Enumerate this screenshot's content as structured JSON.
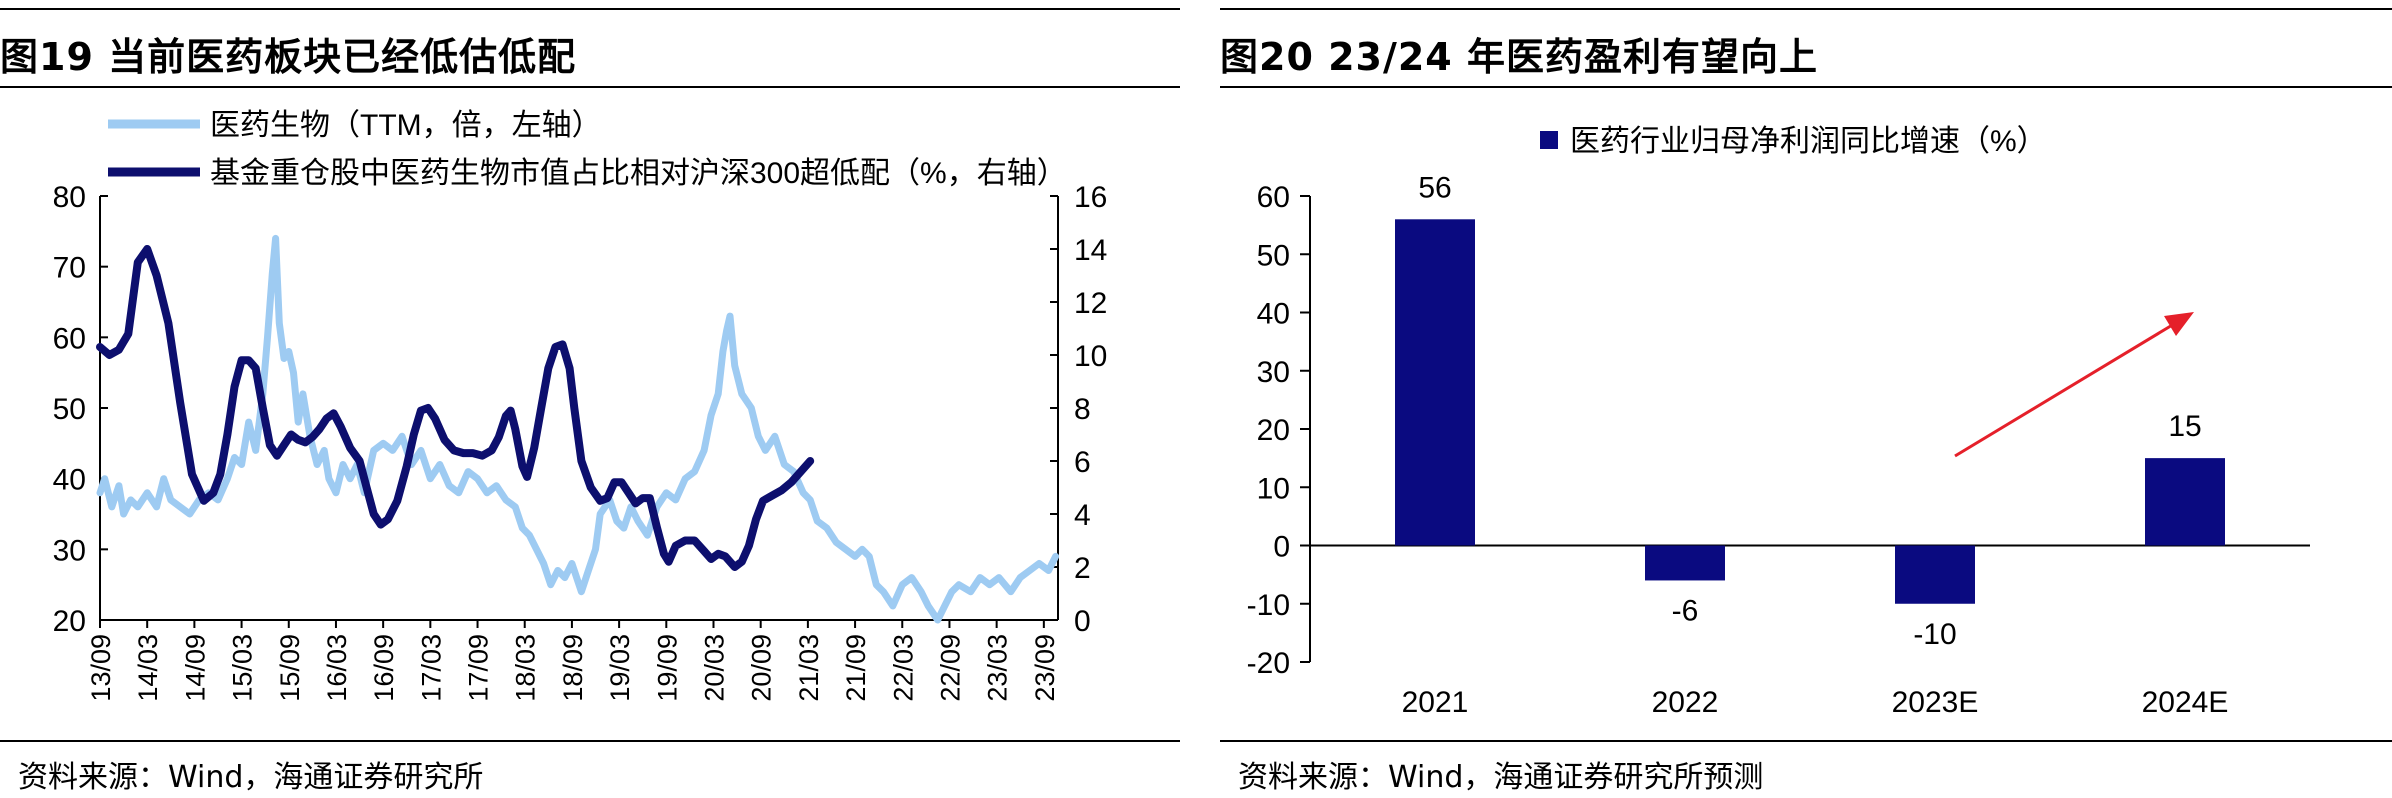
{
  "colors": {
    "light_series": "#9ecbf2",
    "dark_series": "#0d0f6e",
    "bar": "#0a0a80",
    "arrow": "#e5202a",
    "axis": "#000000"
  },
  "left_panel": {
    "title": "图19 当前医药板块已经低估低配",
    "source": "资料来源：Wind，海通证券研究所"
  },
  "right_panel": {
    "title": "图20 23/24 年医药盈利有望向上",
    "source": "资料来源：Wind，海通证券研究所预测"
  },
  "chart_data": [
    {
      "type": "line",
      "title": "当前医药板块已经低估低配",
      "x_tick_labels": [
        "13/09",
        "14/03",
        "14/09",
        "15/03",
        "15/09",
        "16/03",
        "16/09",
        "17/03",
        "17/09",
        "18/03",
        "18/09",
        "19/03",
        "19/09",
        "20/03",
        "20/09",
        "21/03",
        "21/09",
        "22/03",
        "22/09",
        "23/03",
        "23/09"
      ],
      "x_range": [
        0,
        20.3
      ],
      "y_left_range": [
        20,
        80
      ],
      "y_left_ticks": [
        "80",
        "70",
        "60",
        "50",
        "40",
        "30",
        "20"
      ],
      "y_right_range": [
        0,
        16
      ],
      "y_right_ticks": [
        "16",
        "14",
        "12",
        "10",
        "8",
        "6",
        "4",
        "2",
        "0"
      ],
      "series": [
        {
          "name": "医药生物（TTM，倍，左轴）",
          "axis": "left",
          "points": [
            [
              0,
              38
            ],
            [
              0.1,
              40
            ],
            [
              0.25,
              36
            ],
            [
              0.4,
              39
            ],
            [
              0.5,
              35
            ],
            [
              0.65,
              37
            ],
            [
              0.8,
              36
            ],
            [
              1,
              38
            ],
            [
              1.2,
              36
            ],
            [
              1.35,
              40
            ],
            [
              1.5,
              37
            ],
            [
              1.7,
              36
            ],
            [
              1.9,
              35
            ],
            [
              2.1,
              37
            ],
            [
              2.3,
              38
            ],
            [
              2.5,
              37
            ],
            [
              2.7,
              40
            ],
            [
              2.85,
              43
            ],
            [
              3,
              42
            ],
            [
              3.15,
              48
            ],
            [
              3.3,
              44
            ],
            [
              3.45,
              52
            ],
            [
              3.55,
              60
            ],
            [
              3.65,
              69
            ],
            [
              3.72,
              74
            ],
            [
              3.8,
              62
            ],
            [
              3.9,
              57
            ],
            [
              4,
              58
            ],
            [
              4.1,
              55
            ],
            [
              4.2,
              48
            ],
            [
              4.3,
              52
            ],
            [
              4.45,
              46
            ],
            [
              4.6,
              42
            ],
            [
              4.75,
              44
            ],
            [
              4.85,
              40
            ],
            [
              5,
              38
            ],
            [
              5.15,
              42
            ],
            [
              5.3,
              40
            ],
            [
              5.45,
              42
            ],
            [
              5.6,
              38
            ],
            [
              5.8,
              44
            ],
            [
              6,
              45
            ],
            [
              6.2,
              44
            ],
            [
              6.4,
              46
            ],
            [
              6.6,
              42
            ],
            [
              6.8,
              44
            ],
            [
              7,
              40
            ],
            [
              7.2,
              42
            ],
            [
              7.4,
              39
            ],
            [
              7.6,
              38
            ],
            [
              7.8,
              41
            ],
            [
              8,
              40
            ],
            [
              8.2,
              38
            ],
            [
              8.4,
              39
            ],
            [
              8.6,
              37
            ],
            [
              8.8,
              36
            ],
            [
              8.95,
              33
            ],
            [
              9.1,
              32
            ],
            [
              9.25,
              30
            ],
            [
              9.4,
              28
            ],
            [
              9.55,
              25
            ],
            [
              9.7,
              27
            ],
            [
              9.85,
              26
            ],
            [
              10,
              28
            ],
            [
              10.2,
              24
            ],
            [
              10.35,
              27
            ],
            [
              10.5,
              30
            ],
            [
              10.6,
              35
            ],
            [
              10.8,
              37
            ],
            [
              10.95,
              34
            ],
            [
              11.1,
              33
            ],
            [
              11.25,
              36
            ],
            [
              11.4,
              34
            ],
            [
              11.6,
              32
            ],
            [
              11.8,
              36
            ],
            [
              12,
              38
            ],
            [
              12.2,
              37
            ],
            [
              12.4,
              40
            ],
            [
              12.6,
              41
            ],
            [
              12.8,
              44
            ],
            [
              12.95,
              49
            ],
            [
              13.1,
              52
            ],
            [
              13.2,
              58
            ],
            [
              13.28,
              61
            ],
            [
              13.35,
              63
            ],
            [
              13.45,
              56
            ],
            [
              13.6,
              52
            ],
            [
              13.8,
              50
            ],
            [
              13.95,
              46
            ],
            [
              14.1,
              44
            ],
            [
              14.3,
              46
            ],
            [
              14.5,
              42
            ],
            [
              14.7,
              41
            ],
            [
              14.9,
              38
            ],
            [
              15.05,
              37
            ],
            [
              15.2,
              34
            ],
            [
              15.4,
              33
            ],
            [
              15.6,
              31
            ],
            [
              15.8,
              30
            ],
            [
              16,
              29
            ],
            [
              16.15,
              30
            ],
            [
              16.3,
              29
            ],
            [
              16.45,
              25
            ],
            [
              16.6,
              24
            ],
            [
              16.8,
              22
            ],
            [
              17,
              25
            ],
            [
              17.2,
              26
            ],
            [
              17.4,
              24
            ],
            [
              17.55,
              22
            ],
            [
              17.75,
              20
            ],
            [
              17.9,
              22
            ],
            [
              18.05,
              24
            ],
            [
              18.2,
              25
            ],
            [
              18.45,
              24
            ],
            [
              18.65,
              26
            ],
            [
              18.85,
              25
            ],
            [
              19.05,
              26
            ],
            [
              19.3,
              24
            ],
            [
              19.5,
              26
            ],
            [
              19.7,
              27
            ],
            [
              19.9,
              28
            ],
            [
              20.1,
              27
            ],
            [
              20.25,
              29
            ]
          ]
        },
        {
          "name": "基金重仓股中医药生物市值占比相对沪深300超低配（%，右轴）",
          "axis": "right",
          "points": [
            [
              0,
              10.3
            ],
            [
              0.2,
              10
            ],
            [
              0.4,
              10.2
            ],
            [
              0.6,
              10.8
            ],
            [
              0.8,
              13.5
            ],
            [
              1,
              14
            ],
            [
              1.2,
              13
            ],
            [
              1.45,
              11.2
            ],
            [
              1.7,
              8.2
            ],
            [
              1.95,
              5.5
            ],
            [
              2.2,
              4.5
            ],
            [
              2.4,
              4.8
            ],
            [
              2.55,
              5.5
            ],
            [
              2.7,
              7
            ],
            [
              2.85,
              8.8
            ],
            [
              3,
              9.8
            ],
            [
              3.15,
              9.8
            ],
            [
              3.3,
              9.5
            ],
            [
              3.45,
              8
            ],
            [
              3.6,
              6.6
            ],
            [
              3.75,
              6.2
            ],
            [
              3.9,
              6.6
            ],
            [
              4.05,
              7
            ],
            [
              4.2,
              6.8
            ],
            [
              4.35,
              6.7
            ],
            [
              4.5,
              6.9
            ],
            [
              4.65,
              7.2
            ],
            [
              4.8,
              7.6
            ],
            [
              4.95,
              7.8
            ],
            [
              5.1,
              7.3
            ],
            [
              5.3,
              6.5
            ],
            [
              5.5,
              6
            ],
            [
              5.65,
              5
            ],
            [
              5.8,
              4
            ],
            [
              5.95,
              3.6
            ],
            [
              6.1,
              3.8
            ],
            [
              6.3,
              4.5
            ],
            [
              6.5,
              5.8
            ],
            [
              6.65,
              7
            ],
            [
              6.8,
              7.9
            ],
            [
              6.95,
              8
            ],
            [
              7.1,
              7.6
            ],
            [
              7.3,
              6.8
            ],
            [
              7.5,
              6.4
            ],
            [
              7.7,
              6.3
            ],
            [
              7.9,
              6.3
            ],
            [
              8.1,
              6.2
            ],
            [
              8.3,
              6.4
            ],
            [
              8.45,
              6.9
            ],
            [
              8.6,
              7.7
            ],
            [
              8.7,
              7.9
            ],
            [
              8.8,
              7.2
            ],
            [
              8.95,
              5.8
            ],
            [
              9.05,
              5.4
            ],
            [
              9.2,
              6.5
            ],
            [
              9.35,
              8
            ],
            [
              9.5,
              9.5
            ],
            [
              9.65,
              10.3
            ],
            [
              9.8,
              10.4
            ],
            [
              9.95,
              9.5
            ],
            [
              10.05,
              8
            ],
            [
              10.2,
              6
            ],
            [
              10.4,
              5
            ],
            [
              10.6,
              4.5
            ],
            [
              10.75,
              4.6
            ],
            [
              10.9,
              5.2
            ],
            [
              11.05,
              5.2
            ],
            [
              11.2,
              4.8
            ],
            [
              11.35,
              4.4
            ],
            [
              11.5,
              4.6
            ],
            [
              11.65,
              4.6
            ],
            [
              11.8,
              3.5
            ],
            [
              11.95,
              2.5
            ],
            [
              12.05,
              2.2
            ],
            [
              12.2,
              2.8
            ],
            [
              12.4,
              3
            ],
            [
              12.6,
              3
            ],
            [
              12.8,
              2.6
            ],
            [
              12.95,
              2.3
            ],
            [
              13.1,
              2.5
            ],
            [
              13.25,
              2.4
            ],
            [
              13.45,
              2
            ],
            [
              13.6,
              2.2
            ],
            [
              13.75,
              2.8
            ],
            [
              13.9,
              3.8
            ],
            [
              14.05,
              4.5
            ],
            [
              14.25,
              4.7
            ],
            [
              14.45,
              4.9
            ],
            [
              14.65,
              5.2
            ],
            [
              14.85,
              5.6
            ],
            [
              15.05,
              6
            ]
          ]
        }
      ]
    },
    {
      "type": "bar",
      "title": "23/24 年医药盈利有望向上",
      "legend": "医药行业归母净利润同比增速（%）",
      "categories": [
        "2021",
        "2022",
        "2023E",
        "2024E"
      ],
      "values": [
        56,
        -6,
        -10,
        15
      ],
      "value_labels": [
        "56",
        "-6",
        "-10",
        "15"
      ],
      "ylim": [
        -20,
        60
      ],
      "y_ticks": [
        "60",
        "50",
        "40",
        "30",
        "20",
        "10",
        "0",
        "-10",
        "-20"
      ]
    }
  ]
}
